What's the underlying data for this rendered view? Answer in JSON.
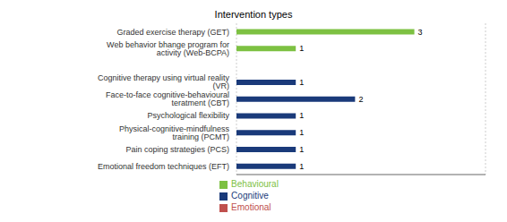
{
  "chart_data": {
    "type": "bar",
    "title": "Intervention types",
    "orientation": "horizontal",
    "stacked": true,
    "categories": [
      "Emotional freedom techniques (EFT)",
      "Pain coping strategies (PCS)",
      "Physical-cognitive-mindfulness training (PCMT)",
      "Psychological flexibility",
      "Face-to-face cognitive-behavioural teratment (CBT)",
      "Cognitive therapy using virtual reality (VR)",
      null,
      "Web behavior bhange program for activity (Web-BCPA)",
      "Graded exercise therapy (GET)"
    ],
    "series": [
      {
        "name": "Behavioural",
        "color": "#7dc142",
        "values": [
          null,
          null,
          null,
          null,
          null,
          null,
          null,
          1,
          3
        ]
      },
      {
        "name": "Emotional",
        "color": "#c0504d",
        "values": [
          null,
          null,
          null,
          null,
          null,
          null,
          null,
          null,
          null
        ]
      },
      {
        "name": "Cognitive",
        "color": "#1a3a7a",
        "values": [
          1,
          1,
          1,
          1,
          2,
          1,
          null,
          null,
          null
        ]
      }
    ],
    "xlim": [
      0,
      4.2
    ],
    "xticks": [
      1,
      2,
      3,
      4
    ],
    "grid": true,
    "tick_labels": "y",
    "data_labels": true,
    "legend": "bottom"
  }
}
